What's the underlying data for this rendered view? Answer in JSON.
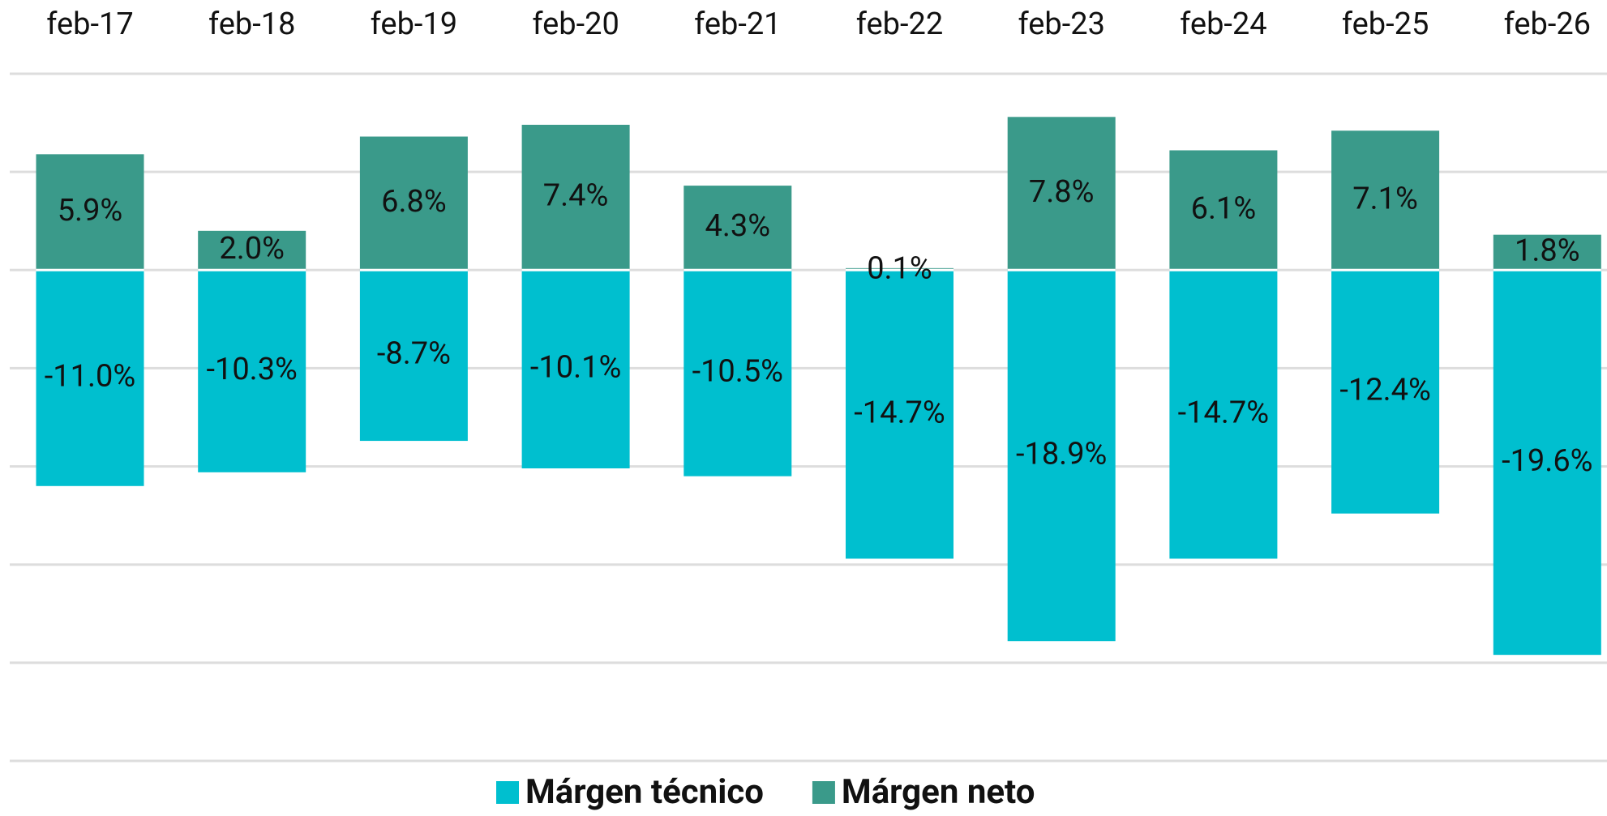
{
  "chart_data": {
    "type": "bar",
    "categories": [
      "feb-17",
      "feb-18",
      "feb-19",
      "feb-20",
      "feb-21",
      "feb-22",
      "feb-23",
      "feb-24",
      "feb-25",
      "feb-26"
    ],
    "series": [
      {
        "name": "Márgen técnico",
        "color": "#00bfcf",
        "values": [
          -11.0,
          -10.3,
          -8.7,
          -10.1,
          -10.5,
          -14.7,
          -18.9,
          -14.7,
          -12.4,
          -19.6
        ],
        "value_labels": [
          "-11.0%",
          "-10.3%",
          "-8.7%",
          "-10.1%",
          "-10.5%",
          "-14.7%",
          "-18.9%",
          "-14.7%",
          "-12.4%",
          "-19.6%"
        ]
      },
      {
        "name": "Márgen neto",
        "color": "#3a9a8a",
        "values": [
          5.9,
          2.0,
          6.8,
          7.4,
          4.3,
          0.1,
          7.8,
          6.1,
          7.1,
          1.8
        ],
        "value_labels": [
          "5.9%",
          "2.0%",
          "6.8%",
          "7.4%",
          "4.3%",
          "0.1%",
          "7.8%",
          "6.1%",
          "7.1%",
          "1.8%"
        ]
      }
    ],
    "ylim": [
      -25,
      10
    ],
    "yticks": [
      10,
      5,
      0,
      -5,
      -10,
      -15,
      -20,
      -25
    ],
    "grid": true,
    "legend": "bottom"
  }
}
